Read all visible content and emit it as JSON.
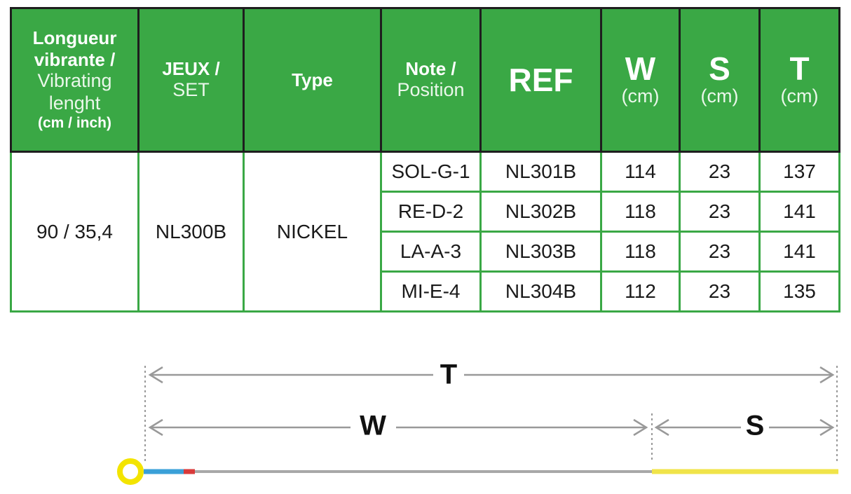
{
  "table": {
    "header": [
      [
        "Longueur",
        "vibrante /",
        "Vibrating",
        "lenght",
        "(cm / inch)"
      ],
      [
        "JEUX /",
        "SET"
      ],
      [
        "Type"
      ],
      [
        "Note /",
        "Position"
      ],
      [
        "REF"
      ],
      [
        "W",
        "(cm)"
      ],
      [
        "S",
        "(cm)"
      ],
      [
        "T",
        "(cm)"
      ]
    ],
    "group": [
      "90 / 35,4",
      "NL300B",
      "NICKEL"
    ],
    "rows": [
      [
        "SOL-G-1",
        "NL301B",
        114,
        23,
        137
      ],
      [
        "RE-D-2",
        "NL302B",
        118,
        23,
        141
      ],
      [
        "LA-A-3",
        "NL303B",
        118,
        23,
        141
      ],
      [
        "MI-E-4",
        "NL304B",
        112,
        23,
        135
      ]
    ]
  },
  "diagram": {
    "total": "T",
    "width": "W",
    "spacing": "S"
  }
}
